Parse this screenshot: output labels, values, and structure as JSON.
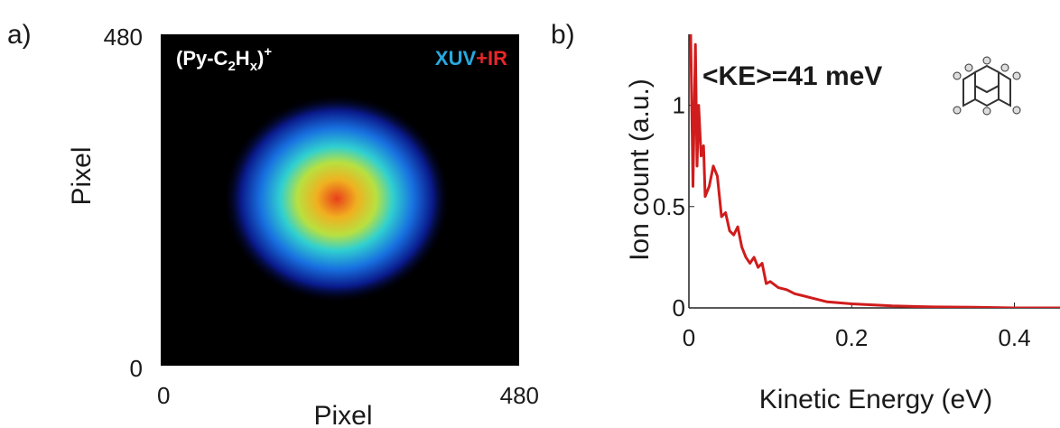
{
  "chart_data": [
    {
      "type": "image",
      "panel": "a)",
      "xlabel": "Pixel",
      "ylabel": "Pixel",
      "xlim": [
        0,
        480
      ],
      "ylim": [
        0,
        480
      ],
      "xticks": [
        0,
        480
      ],
      "yticks": [
        0,
        480
      ],
      "annotation_parts": [
        "(Py-C",
        "2",
        "H",
        "x",
        ")",
        "+"
      ],
      "legend_parts": [
        {
          "text": "XUV",
          "color": "#29a8e0"
        },
        {
          "text": "+IR",
          "color": "#e8262a"
        }
      ]
    },
    {
      "type": "line",
      "panel": "b)",
      "xlabel": "Kinetic Energy (eV)",
      "ylabel": "Ion count (a.u.)",
      "annotation": "<KE>=41 meV",
      "xlim": [
        0,
        0.456
      ],
      "ylim": [
        0,
        1.35
      ],
      "xticks": [
        0,
        0.2,
        0.4
      ],
      "yticks": [
        0,
        0.5,
        1
      ],
      "series": [
        {
          "color": "#d01c1c",
          "x": [
            0.002,
            0.005,
            0.008,
            0.01,
            0.012,
            0.015,
            0.018,
            0.02,
            0.025,
            0.03,
            0.035,
            0.04,
            0.045,
            0.05,
            0.055,
            0.06,
            0.065,
            0.07,
            0.075,
            0.08,
            0.085,
            0.09,
            0.095,
            0.1,
            0.11,
            0.12,
            0.13,
            0.14,
            0.15,
            0.17,
            0.2,
            0.25,
            0.3,
            0.35,
            0.4,
            0.456
          ],
          "values": [
            1.4,
            0.6,
            1.3,
            0.7,
            1.0,
            0.75,
            0.8,
            0.55,
            0.6,
            0.7,
            0.65,
            0.45,
            0.47,
            0.38,
            0.36,
            0.4,
            0.3,
            0.25,
            0.22,
            0.25,
            0.2,
            0.22,
            0.12,
            0.13,
            0.1,
            0.09,
            0.07,
            0.06,
            0.05,
            0.03,
            0.02,
            0.01,
            0.005,
            0.003,
            0.0,
            0.0
          ]
        }
      ]
    }
  ]
}
